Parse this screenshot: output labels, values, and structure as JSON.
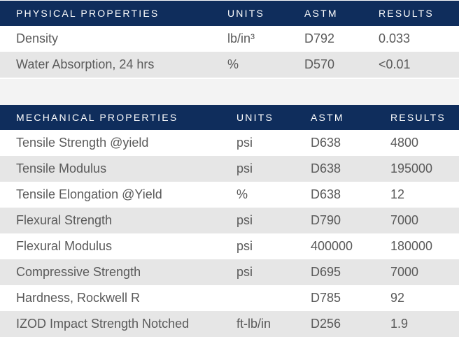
{
  "physical": {
    "headers": [
      "PHYSICAL PROPERTIES",
      "UNITS",
      "ASTM",
      "RESULTS"
    ],
    "rows": [
      [
        "Density",
        "lb/in³",
        "D792",
        "0.033"
      ],
      [
        "Water Absorption, 24 hrs",
        "%",
        "D570",
        "<0.01"
      ]
    ]
  },
  "mechanical": {
    "headers": [
      "MECHANICAL PROPERTIES",
      "UNITS",
      "ASTM",
      "RESULTS"
    ],
    "rows": [
      [
        "Tensile Strength @yield",
        "psi",
        "D638",
        "4800"
      ],
      [
        "Tensile Modulus",
        "psi",
        "D638",
        "195000"
      ],
      [
        "Tensile Elongation @Yield",
        "%",
        "D638",
        "12"
      ],
      [
        "Flexural Strength",
        "psi",
        "D790",
        "7000"
      ],
      [
        "Flexural Modulus",
        "psi",
        "400000",
        "180000"
      ],
      [
        "Compressive Strength",
        "psi",
        "D695",
        "7000"
      ],
      [
        "Hardness, Rockwell R",
        "",
        "D785",
        "92"
      ],
      [
        "IZOD Impact Strength Notched",
        "ft-lb/in",
        "D256",
        "1.9"
      ]
    ]
  },
  "colors": {
    "header_bg": "#0f2d5c",
    "header_text": "#ffffff",
    "row_alt_bg": "#e6e6e6",
    "body_text": "#5a5a5a"
  }
}
